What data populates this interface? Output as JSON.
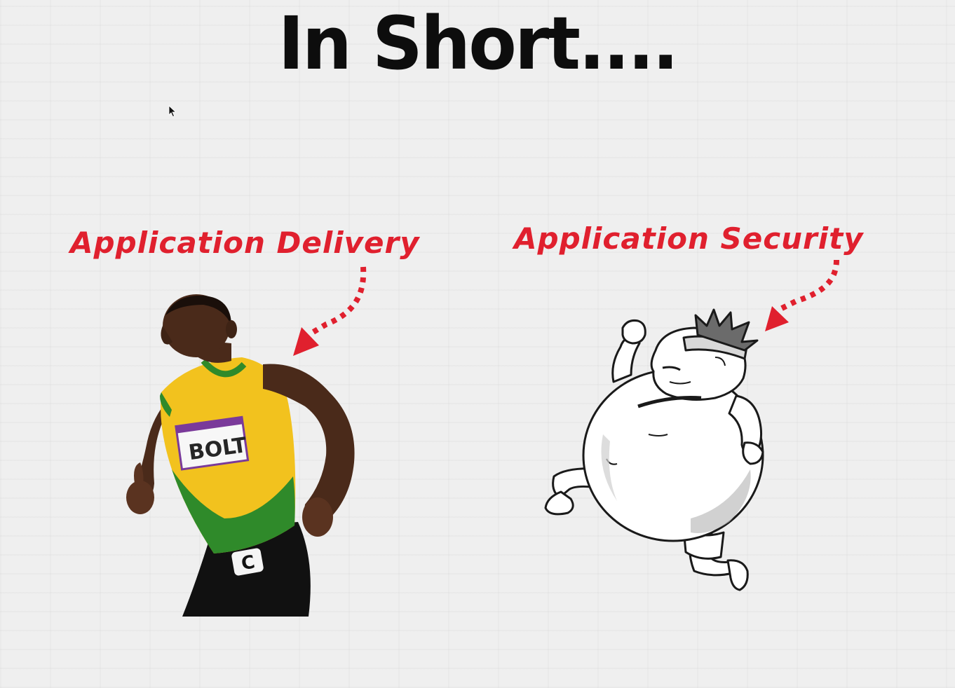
{
  "slide": {
    "title": "In Short....",
    "left_panel": {
      "label": "Application Delivery",
      "image": "sprinter-bolt",
      "bib_text": "BOLT",
      "shorts_mark": "C"
    },
    "right_panel": {
      "label": "Application Security",
      "image": "cartoon-overweight-runner"
    }
  },
  "colors": {
    "background": "#efefef",
    "title": "#0d0d0d",
    "accent_red": "#e0202e"
  },
  "icons": {
    "pointer": "mouse-pointer-icon",
    "arrows": "dotted-arrow-icon"
  }
}
